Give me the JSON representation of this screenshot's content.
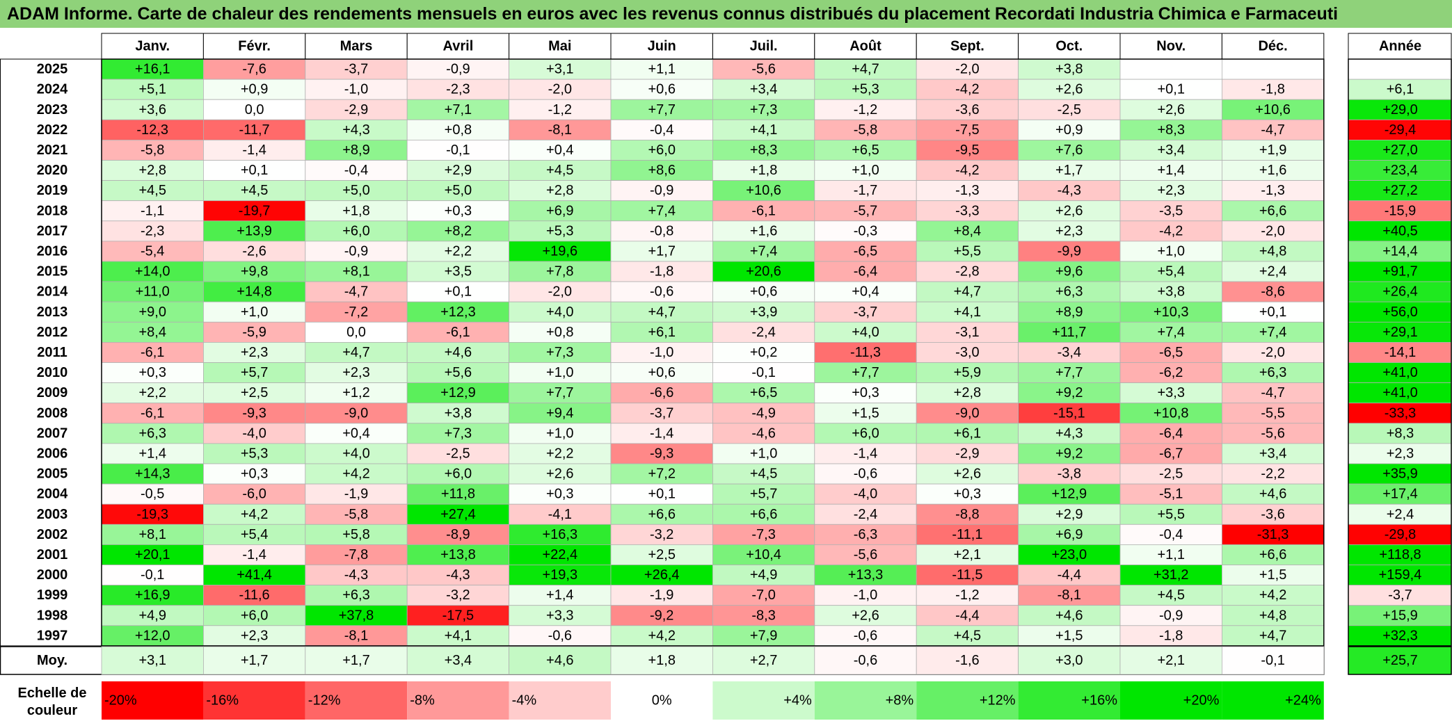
{
  "chart_data": {
    "type": "heatmap",
    "title": "ADAM Informe. Carte de chaleur des rendements mensuels en euros avec les revenus connus distribués du placement Recordati Industria Chimica e Farmaceuti",
    "columns": [
      "Janv.",
      "Févr.",
      "Mars",
      "Avril",
      "Mai",
      "Juin",
      "Juil.",
      "Août",
      "Sept.",
      "Oct.",
      "Nov.",
      "Déc."
    ],
    "annual_header": "Année",
    "rows": [
      {
        "year": "2025",
        "values": [
          16.1,
          -7.6,
          -3.7,
          -0.9,
          3.1,
          1.1,
          -5.6,
          4.7,
          -2.0,
          3.8,
          null,
          null
        ],
        "annual": null
      },
      {
        "year": "2024",
        "values": [
          5.1,
          0.9,
          -1.0,
          -2.3,
          -2.0,
          0.6,
          3.4,
          5.3,
          -4.2,
          2.6,
          0.1,
          -1.8
        ],
        "annual": 6.1
      },
      {
        "year": "2023",
        "values": [
          3.6,
          0.0,
          -2.9,
          7.1,
          -1.2,
          7.7,
          7.3,
          -1.2,
          -3.6,
          -2.5,
          2.6,
          10.6
        ],
        "annual": 29.0
      },
      {
        "year": "2022",
        "values": [
          -12.3,
          -11.7,
          4.3,
          0.8,
          -8.1,
          -0.4,
          4.1,
          -5.8,
          -7.5,
          0.9,
          8.3,
          -4.7
        ],
        "annual": -29.4
      },
      {
        "year": "2021",
        "values": [
          -5.8,
          -1.4,
          8.9,
          -0.1,
          0.4,
          6.0,
          8.3,
          6.5,
          -9.5,
          7.6,
          3.4,
          1.9
        ],
        "annual": 27.0
      },
      {
        "year": "2020",
        "values": [
          2.8,
          0.1,
          -0.4,
          2.9,
          4.5,
          8.6,
          1.8,
          1.0,
          -4.2,
          1.7,
          1.4,
          1.6
        ],
        "annual": 23.4
      },
      {
        "year": "2019",
        "values": [
          4.5,
          4.5,
          5.0,
          5.0,
          2.8,
          -0.9,
          10.6,
          -1.7,
          -1.3,
          -4.3,
          2.3,
          -1.3
        ],
        "annual": 27.2
      },
      {
        "year": "2018",
        "values": [
          -1.1,
          -19.7,
          1.8,
          0.3,
          6.9,
          7.4,
          -6.1,
          -5.7,
          -3.3,
          2.6,
          -3.5,
          6.6
        ],
        "annual": -15.9
      },
      {
        "year": "2017",
        "values": [
          -2.3,
          13.9,
          6.0,
          8.2,
          5.3,
          -0.8,
          1.6,
          -0.3,
          8.4,
          2.3,
          -4.2,
          -2.0
        ],
        "annual": 40.5
      },
      {
        "year": "2016",
        "values": [
          -5.4,
          -2.6,
          -0.9,
          2.2,
          19.6,
          1.7,
          7.4,
          -6.5,
          5.5,
          -9.9,
          1.0,
          4.8
        ],
        "annual": 14.4
      },
      {
        "year": "2015",
        "values": [
          14.0,
          9.8,
          8.1,
          3.5,
          7.8,
          -1.8,
          20.6,
          -6.4,
          -2.8,
          9.6,
          5.4,
          2.4
        ],
        "annual": 91.7
      },
      {
        "year": "2014",
        "values": [
          11.0,
          14.8,
          -4.7,
          0.1,
          -2.0,
          -0.6,
          0.6,
          0.4,
          4.7,
          6.3,
          3.8,
          -8.6
        ],
        "annual": 26.4
      },
      {
        "year": "2013",
        "values": [
          9.0,
          1.0,
          -7.2,
          12.3,
          4.0,
          4.7,
          3.9,
          -3.7,
          4.1,
          8.9,
          10.3,
          0.1
        ],
        "annual": 56.0
      },
      {
        "year": "2012",
        "values": [
          8.4,
          -5.9,
          0.0,
          -6.1,
          0.8,
          6.1,
          -2.4,
          4.0,
          -3.1,
          11.7,
          7.4,
          7.4
        ],
        "annual": 29.1
      },
      {
        "year": "2011",
        "values": [
          -6.1,
          2.3,
          4.7,
          4.6,
          7.3,
          -1.0,
          0.2,
          -11.3,
          -3.0,
          -3.4,
          -6.5,
          -2.0
        ],
        "annual": -14.1
      },
      {
        "year": "2010",
        "values": [
          0.3,
          5.7,
          2.3,
          5.6,
          1.0,
          0.6,
          -0.1,
          7.7,
          5.9,
          7.7,
          -6.2,
          6.3
        ],
        "annual": 41.0
      },
      {
        "year": "2009",
        "values": [
          2.2,
          2.5,
          1.2,
          12.9,
          7.7,
          -6.6,
          6.5,
          0.3,
          2.8,
          9.2,
          3.3,
          -4.7
        ],
        "annual": 41.0
      },
      {
        "year": "2008",
        "values": [
          -6.1,
          -9.3,
          -9.0,
          3.8,
          9.4,
          -3.7,
          -4.9,
          1.5,
          -9.0,
          -15.1,
          10.8,
          -5.5
        ],
        "annual": -33.3
      },
      {
        "year": "2007",
        "values": [
          6.3,
          -4.0,
          0.4,
          7.3,
          1.0,
          -1.4,
          -4.6,
          6.0,
          6.1,
          4.3,
          -6.4,
          -5.6
        ],
        "annual": 8.3
      },
      {
        "year": "2006",
        "values": [
          1.4,
          5.3,
          4.0,
          -2.5,
          2.2,
          -9.3,
          1.0,
          -1.4,
          -2.9,
          9.2,
          -6.7,
          3.4
        ],
        "annual": 2.3
      },
      {
        "year": "2005",
        "values": [
          14.3,
          0.3,
          4.2,
          6.0,
          2.6,
          7.2,
          4.5,
          -0.6,
          2.6,
          -3.8,
          -2.5,
          -2.2
        ],
        "annual": 35.9
      },
      {
        "year": "2004",
        "values": [
          -0.5,
          -6.0,
          -1.9,
          11.8,
          0.3,
          0.1,
          5.7,
          -4.0,
          0.3,
          12.9,
          -5.1,
          4.6
        ],
        "annual": 17.4
      },
      {
        "year": "2003",
        "values": [
          -19.3,
          4.2,
          -5.8,
          27.4,
          -4.1,
          6.6,
          6.6,
          -2.4,
          -8.8,
          2.9,
          5.5,
          -3.6
        ],
        "annual": 2.4
      },
      {
        "year": "2002",
        "values": [
          8.1,
          5.4,
          5.8,
          -8.9,
          16.3,
          -3.2,
          -7.3,
          -6.3,
          -11.1,
          6.9,
          -0.4,
          -31.3
        ],
        "annual": -29.8
      },
      {
        "year": "2001",
        "values": [
          20.1,
          -1.4,
          -7.8,
          13.8,
          22.4,
          2.5,
          10.4,
          -5.6,
          2.1,
          23.0,
          1.1,
          6.6
        ],
        "annual": 118.8
      },
      {
        "year": "2000",
        "values": [
          -0.1,
          41.4,
          -4.3,
          -4.3,
          19.3,
          26.4,
          4.9,
          13.3,
          -11.5,
          -4.4,
          31.2,
          1.5
        ],
        "annual": 159.4
      },
      {
        "year": "1999",
        "values": [
          16.9,
          -11.6,
          6.3,
          -3.2,
          1.4,
          -1.9,
          -7.0,
          -1.0,
          -1.2,
          -8.1,
          4.5,
          4.2
        ],
        "annual": -3.7
      },
      {
        "year": "1998",
        "values": [
          4.9,
          6.0,
          37.8,
          -17.5,
          3.3,
          -9.2,
          -8.3,
          2.6,
          -4.4,
          4.6,
          -0.9,
          4.8
        ],
        "annual": 15.9
      },
      {
        "year": "1997",
        "values": [
          12.0,
          2.3,
          -8.1,
          4.1,
          -0.6,
          4.2,
          7.9,
          -0.6,
          4.5,
          1.5,
          -1.8,
          4.7
        ],
        "annual": 32.3
      }
    ],
    "average": {
      "label": "Moy.",
      "values": [
        3.1,
        1.7,
        1.7,
        3.4,
        4.6,
        1.8,
        2.7,
        -0.6,
        -1.6,
        3.0,
        2.1,
        -0.1
      ],
      "annual": 25.7
    },
    "scale": {
      "label_line1": "Echelle de",
      "label_line2": "couleur",
      "stops": [
        "-20%",
        "-16%",
        "-12%",
        "-8%",
        "-4%",
        "0%",
        "+4%",
        "+8%",
        "+12%",
        "+16%",
        "+20%",
        "+24%"
      ],
      "stop_values": [
        -20,
        -16,
        -12,
        -8,
        -4,
        0,
        4,
        8,
        12,
        16,
        20,
        24
      ]
    },
    "colors": {
      "negative": "#ff0000",
      "positive": "#00e600",
      "neutral": "#ffffff",
      "title_bg": "#8fd27a",
      "grid": "#b0b0b0"
    }
  }
}
